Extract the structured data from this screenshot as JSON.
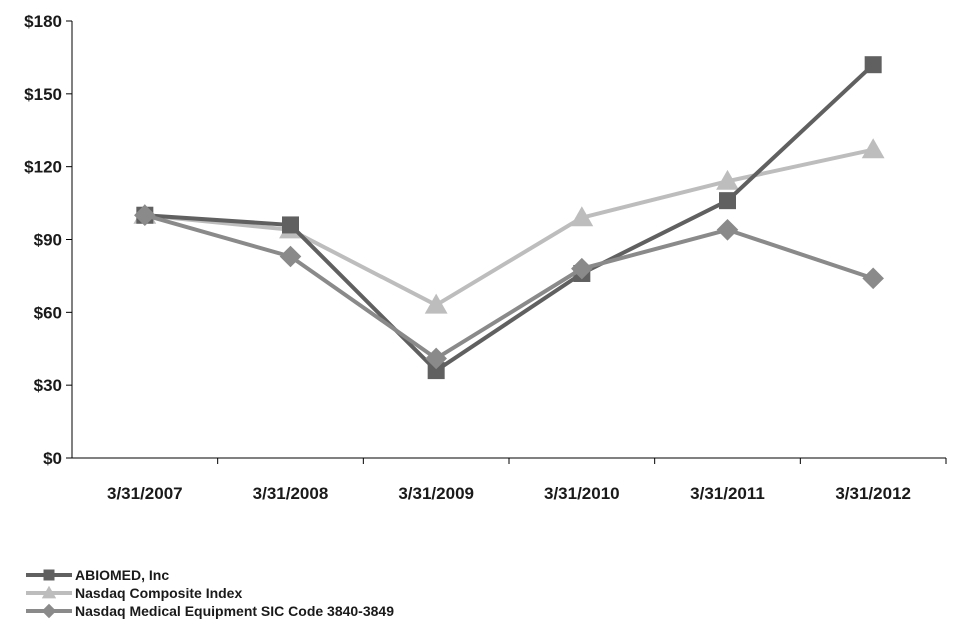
{
  "chart_data": {
    "type": "line",
    "title": "",
    "xlabel": "",
    "ylabel": "",
    "categories": [
      "3/31/2007",
      "3/31/2008",
      "3/31/2009",
      "3/31/2010",
      "3/31/2011",
      "3/31/2012"
    ],
    "ylim": [
      0,
      180
    ],
    "yticks": [
      0,
      30,
      60,
      90,
      120,
      150,
      180
    ],
    "ytick_labels": [
      "$0",
      "$30",
      "$60",
      "$90",
      "$120",
      "$150",
      "$180"
    ],
    "grid": false,
    "legend_position": "bottom-left",
    "series": [
      {
        "name": "ABIOMED, Inc",
        "values": [
          100,
          96,
          36,
          76,
          106,
          162
        ],
        "color": "#606060",
        "marker": "square"
      },
      {
        "name": "Nasdaq Composite Index",
        "values": [
          100,
          94,
          63,
          99,
          114,
          127
        ],
        "color": "#bdbdbd",
        "marker": "triangle"
      },
      {
        "name": "Nasdaq Medical Equipment SIC Code 3840-3849",
        "values": [
          100,
          83,
          41,
          78,
          94,
          74
        ],
        "color": "#8a8a8a",
        "marker": "diamond"
      }
    ]
  }
}
